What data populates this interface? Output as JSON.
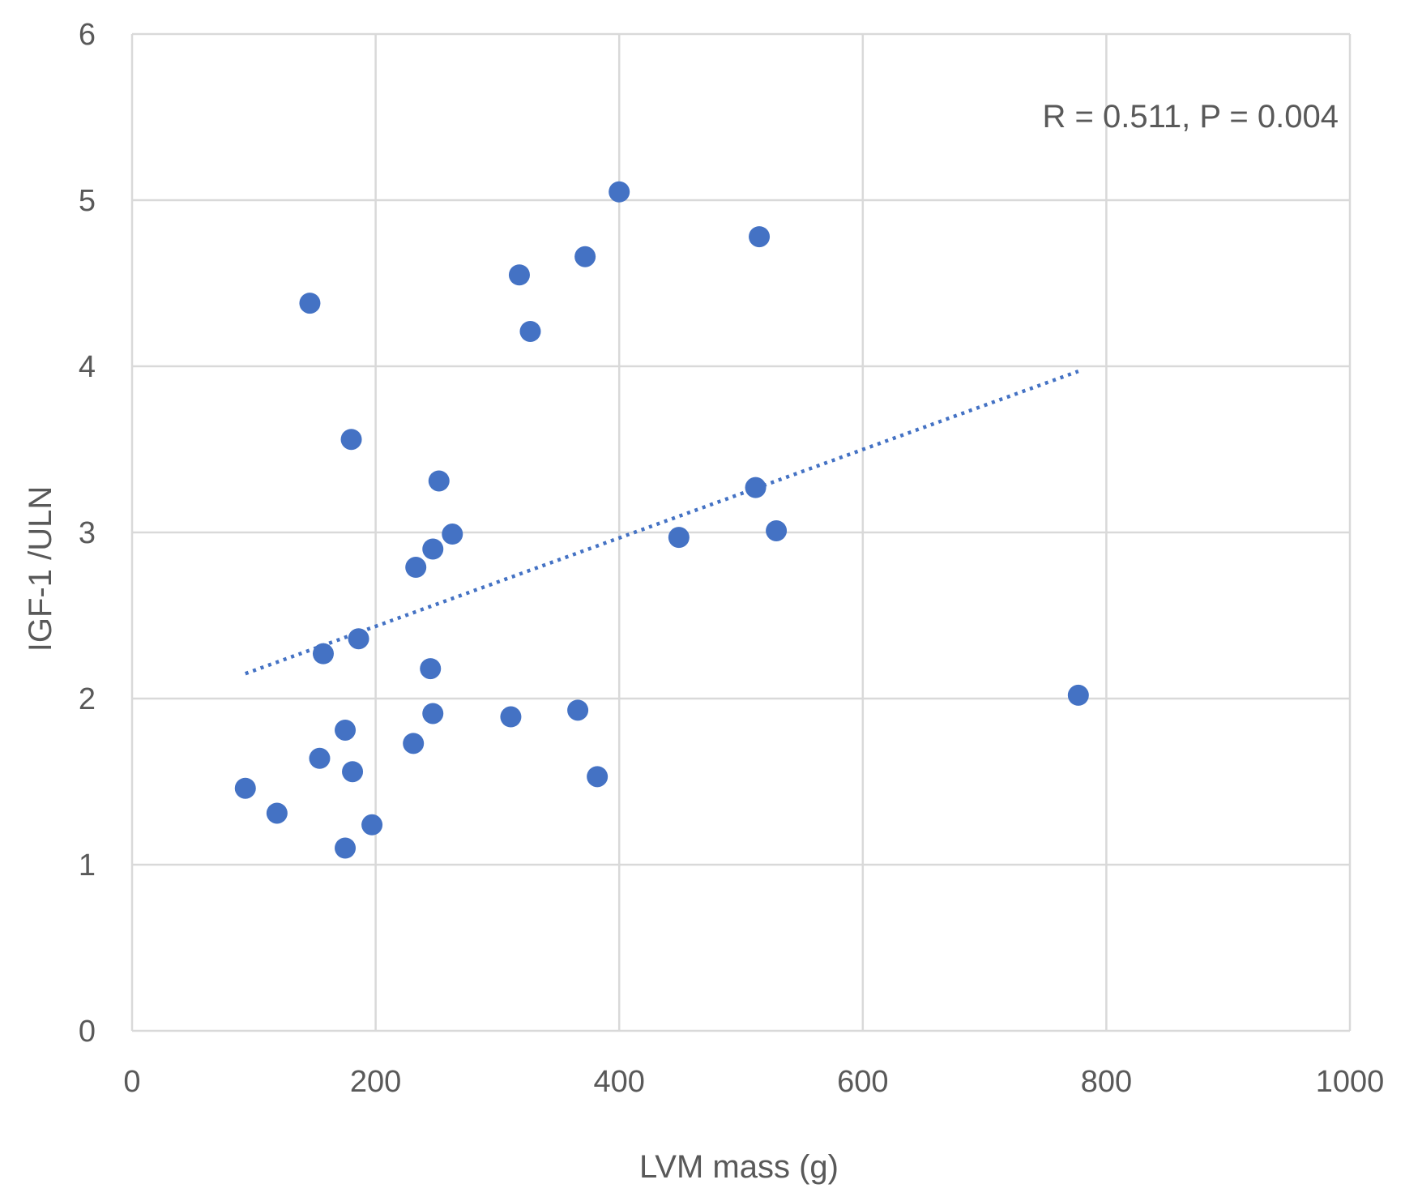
{
  "chart_data": {
    "type": "scatter",
    "title": "",
    "xlabel": "LVM  mass (g)",
    "ylabel": "IGF-1 /ULN",
    "xlim": [
      0,
      1000
    ],
    "ylim": [
      0,
      6
    ],
    "x_ticks": [
      0,
      200,
      400,
      600,
      800,
      1000
    ],
    "y_ticks": [
      0,
      1,
      2,
      3,
      4,
      5,
      6
    ],
    "x_tick_labels": [
      "0",
      "200",
      "400",
      "600",
      "800",
      "1000"
    ],
    "y_tick_labels": [
      "0",
      "1",
      "2",
      "3",
      "4",
      "5",
      "6"
    ],
    "grid": true,
    "legend": "none",
    "annotation": "R = 0.511, P  =  0.004",
    "series": [
      {
        "marker_color": "#4472C4",
        "points": [
          {
            "x": 93,
            "y": 1.46
          },
          {
            "x": 119,
            "y": 1.31
          },
          {
            "x": 146,
            "y": 4.38
          },
          {
            "x": 154,
            "y": 1.64
          },
          {
            "x": 157,
            "y": 2.27
          },
          {
            "x": 175,
            "y": 1.81
          },
          {
            "x": 175,
            "y": 1.1
          },
          {
            "x": 180,
            "y": 3.56
          },
          {
            "x": 181,
            "y": 1.56
          },
          {
            "x": 186,
            "y": 2.36
          },
          {
            "x": 197,
            "y": 1.24
          },
          {
            "x": 231,
            "y": 1.73
          },
          {
            "x": 233,
            "y": 2.79
          },
          {
            "x": 245,
            "y": 2.18
          },
          {
            "x": 247,
            "y": 2.9
          },
          {
            "x": 247,
            "y": 1.91
          },
          {
            "x": 252,
            "y": 3.31
          },
          {
            "x": 263,
            "y": 2.99
          },
          {
            "x": 311,
            "y": 1.89
          },
          {
            "x": 318,
            "y": 4.55
          },
          {
            "x": 327,
            "y": 4.21
          },
          {
            "x": 366,
            "y": 1.93
          },
          {
            "x": 372,
            "y": 4.66
          },
          {
            "x": 382,
            "y": 1.53
          },
          {
            "x": 400,
            "y": 5.05
          },
          {
            "x": 449,
            "y": 2.97
          },
          {
            "x": 512,
            "y": 3.27
          },
          {
            "x": 515,
            "y": 4.78
          },
          {
            "x": 529,
            "y": 3.01
          },
          {
            "x": 777,
            "y": 2.02
          }
        ]
      }
    ],
    "trendline": {
      "type": "linear",
      "style": "dotted",
      "color": "#4472C4",
      "x_start": 93,
      "y_start": 2.15,
      "x_end": 777,
      "y_end": 3.97
    },
    "colors": {
      "grid": "#D9D9D9",
      "text": "#595959"
    }
  }
}
